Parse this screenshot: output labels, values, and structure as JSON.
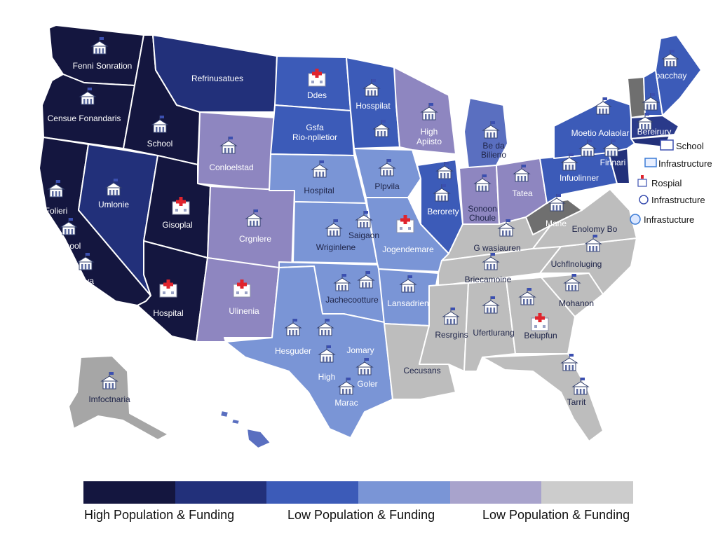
{
  "colors": {
    "tier1": "#14163f",
    "tier2": "#22307a",
    "tier3": "#3c5bb8",
    "tier4": "#7a95d6",
    "tier5": "#8e86c0",
    "tier6": "#bdbdbd",
    "mid": "#5a6fc0",
    "alaska": "#a6a6a6",
    "wv": "#6f6f6f",
    "ne_dark": "#2a3a8a"
  },
  "labels": {
    "wa": "Fenni Sonration",
    "or": "Censue Fonandaris",
    "ca1": "Folieri",
    "ca2": "School",
    "ca3": "nava",
    "nv": "Umlonie",
    "id": "School",
    "mt": "Refrinusatues",
    "wy": "Conloelstad",
    "ut": "Gisoplal",
    "az": "Hospital",
    "co": "Crgnlere",
    "nm": "Ulinenia",
    "nd": "Ddes",
    "sd1": "Gsfa",
    "sd2": "Rio-nplletior",
    "ne": "Hospital",
    "ks": "Wriginlene",
    "ok": "Jachecootture",
    "tx1": "Hesguder",
    "tx2": "Jomary",
    "tx3": "High",
    "tx4": "Goler",
    "tx5": "Marac",
    "mn": "Hosspilat",
    "ia": "Plpvila",
    "mo": "Jogendemare",
    "mo2": "Saigaon",
    "ar": "Lansadrien",
    "wi1": "High",
    "wi2": "Apiisto",
    "mi1": "Be da",
    "mi2": "Bilieno",
    "il": "Berorety",
    "in1": "Sonoon",
    "in2": "Choule",
    "oh": "Tatea",
    "pa": "Infuolinner",
    "ny": "Moetio Aolaolar",
    "ma": "Bereirury",
    "me": "bacchay",
    "wv": "Mane",
    "va": "Enolomy Bo",
    "ky": "G wasiauren",
    "nc": "Uchflnoluging",
    "tn": "Briecamoine",
    "ms": "Resrgins",
    "al": "Ufertlurang",
    "ga": "Belupfun",
    "sc": "Mohanon",
    "la": "Cecusans",
    "fl": "Tarrit",
    "ak": "Imfoctnaria",
    "nj": "Finnari"
  },
  "side_labels": {
    "school": "School",
    "infra1": "Infrastructure",
    "rospial": "Rospial",
    "infra2": "Infrastructure",
    "infra3": "Infrastucture"
  },
  "legend": {
    "label1": "High Population & Funding",
    "label2": "Low Population & Funding",
    "label3": "Low Population & Funding"
  }
}
